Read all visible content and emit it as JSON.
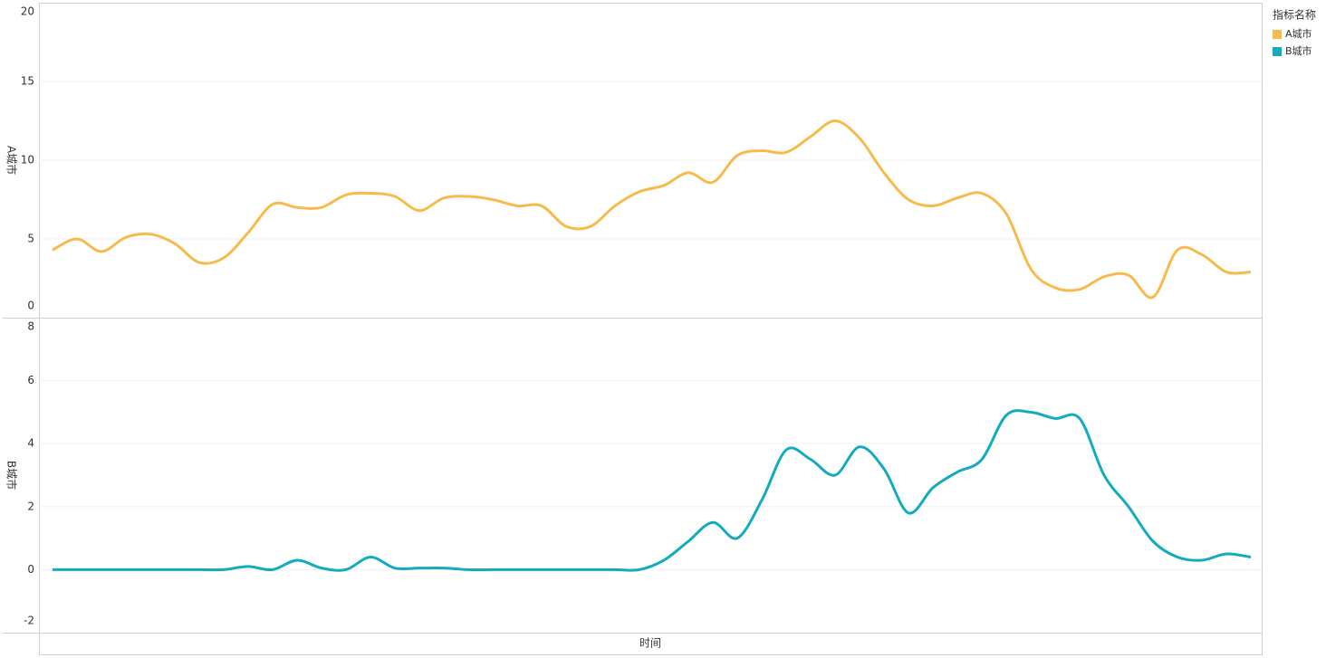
{
  "chart_data": [
    {
      "type": "line",
      "y_label": "A城市",
      "legend_title": "指标名称",
      "legend_position": "top-right",
      "grid": true,
      "categories": [
        null,
        null,
        null,
        null,
        null,
        null,
        null,
        null,
        null,
        null,
        null,
        null,
        null,
        null,
        null,
        null,
        null,
        null,
        null,
        null,
        null,
        null,
        null,
        null,
        null,
        null,
        null,
        null,
        null,
        null,
        null,
        null,
        null,
        null,
        null,
        null,
        null,
        null,
        null,
        null,
        null,
        null,
        null,
        null,
        null,
        null,
        null,
        null,
        null,
        null
      ],
      "ylim": [
        0,
        20
      ],
      "yticks": [
        0,
        5,
        10,
        15,
        20
      ],
      "series": [
        {
          "name": "A城市",
          "color": "#f7bb4c",
          "values": [
            4.3,
            5.0,
            4.2,
            5.1,
            5.3,
            4.7,
            3.5,
            3.8,
            5.4,
            7.2,
            7.0,
            7.0,
            7.8,
            7.9,
            7.7,
            6.8,
            7.6,
            7.7,
            7.5,
            7.1,
            7.1,
            5.8,
            5.8,
            7.1,
            8.0,
            8.4,
            9.2,
            8.6,
            10.3,
            10.6,
            10.5,
            11.5,
            12.5,
            11.4,
            9.2,
            7.5,
            7.1,
            7.6,
            7.9,
            6.6,
            3.1,
            1.9,
            1.8,
            2.6,
            2.7,
            1.3,
            4.3,
            4.0,
            2.9,
            2.9
          ]
        }
      ]
    },
    {
      "type": "line",
      "y_label": "B城市",
      "x_label": "时间",
      "grid": true,
      "categories": [
        null,
        null,
        null,
        null,
        null,
        null,
        null,
        null,
        null,
        null,
        null,
        null,
        null,
        null,
        null,
        null,
        null,
        null,
        null,
        null,
        null,
        null,
        null,
        null,
        null,
        null,
        null,
        null,
        null,
        null,
        null,
        null,
        null,
        null,
        null,
        null,
        null,
        null,
        null,
        null,
        null,
        null,
        null,
        null,
        null,
        null,
        null,
        null,
        null,
        null
      ],
      "ylim": [
        -2,
        8
      ],
      "yticks": [
        -2,
        0,
        2,
        4,
        6,
        8
      ],
      "series": [
        {
          "name": "B城市",
          "color": "#13acbf",
          "values": [
            0,
            0,
            0,
            0,
            0,
            0,
            0,
            0,
            0.1,
            0,
            0.3,
            0.05,
            0,
            0.4,
            0.05,
            0.05,
            0.05,
            0,
            0,
            0,
            0,
            0,
            0,
            0,
            0,
            0.3,
            0.9,
            1.5,
            1.0,
            2.2,
            3.8,
            3.5,
            3.0,
            3.9,
            3.2,
            1.8,
            2.6,
            3.1,
            3.5,
            4.9,
            5.0,
            4.8,
            4.8,
            3.0,
            2.0,
            0.9,
            0.4,
            0.3,
            0.5,
            0.4
          ]
        }
      ]
    }
  ]
}
